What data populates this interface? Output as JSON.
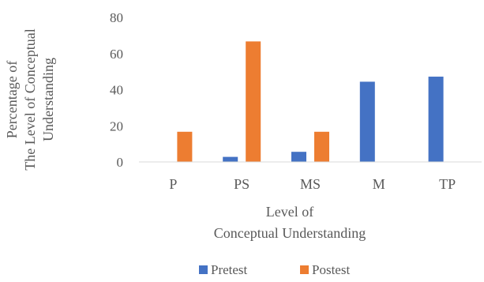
{
  "chart_data": {
    "type": "bar",
    "title": "",
    "categories": [
      "P",
      "PS",
      "MS",
      "M",
      "TP"
    ],
    "series": [
      {
        "name": "Pretest",
        "values": [
          0,
          2.8,
          5.6,
          44.4,
          47.2
        ],
        "color": "#4472C4"
      },
      {
        "name": "Postest",
        "values": [
          16.7,
          66.7,
          16.7,
          0,
          0
        ],
        "color": "#ED7D31"
      }
    ],
    "ylim": [
      0,
      80
    ],
    "yticks": [
      "0",
      "20",
      "40",
      "60",
      "80"
    ],
    "ylabel_lines": [
      "Percentage of",
      "The Level of Conceptual",
      "Understanding"
    ],
    "xlabel_lines": [
      "Level of",
      "Conceptual Understanding"
    ],
    "grid": false,
    "legend": "bottom"
  }
}
